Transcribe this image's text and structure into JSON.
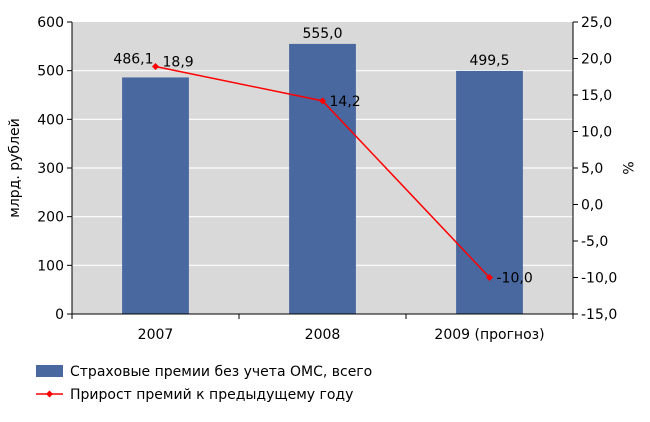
{
  "chart_data": {
    "type": "bar",
    "categories": [
      "2007",
      "2008",
      "2009 (прогноз)"
    ],
    "series": [
      {
        "name": "Страховые премии без учета ОМС, всего",
        "type": "bar",
        "axis": "left",
        "values": [
          486.1,
          555.0,
          499.5
        ],
        "labels": [
          "486,1",
          "555,0",
          "499,5"
        ],
        "color": "#4a68a0"
      },
      {
        "name": "Прирост премий к предыдущему году",
        "type": "line",
        "axis": "right",
        "values": [
          18.9,
          14.2,
          -10.0
        ],
        "labels": [
          "18,9",
          "14,2",
          "-10,0"
        ],
        "color": "#ff0000"
      }
    ],
    "y_left": {
      "label": "млрд. рублей",
      "min": 0,
      "max": 600,
      "ticks": [
        "0",
        "100",
        "200",
        "300",
        "400",
        "500",
        "600"
      ]
    },
    "y_right": {
      "label": "%",
      "min": -15,
      "max": 25,
      "ticks": [
        "-15,0",
        "-10,0",
        "-5,0",
        "0,0",
        "5,0",
        "10,0",
        "15,0",
        "20,0",
        "25,0"
      ]
    },
    "plot_background": "#d9d9d9",
    "grid": true,
    "legend_position": "bottom-left"
  }
}
